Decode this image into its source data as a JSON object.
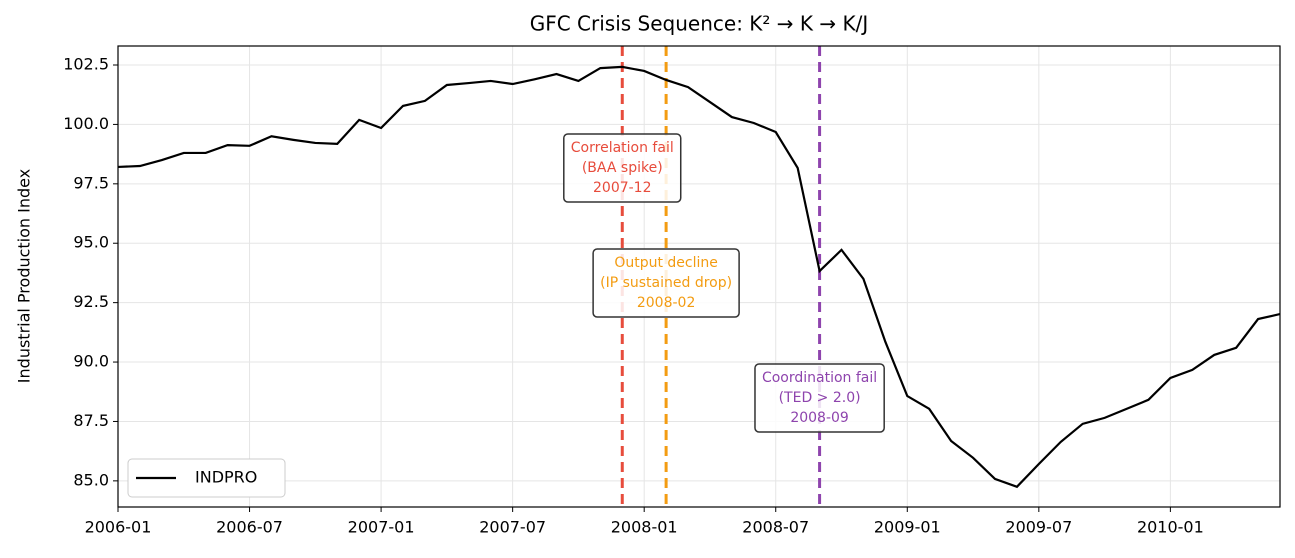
{
  "chart_data": {
    "type": "line",
    "title": "GFC Crisis Sequence: K² → K → K/J",
    "y_label": "Industrial Production Index",
    "x": [
      "2006-01",
      "2006-02",
      "2006-03",
      "2006-04",
      "2006-05",
      "2006-06",
      "2006-07",
      "2006-08",
      "2006-09",
      "2006-10",
      "2006-11",
      "2006-12",
      "2007-01",
      "2007-02",
      "2007-03",
      "2007-04",
      "2007-05",
      "2007-06",
      "2007-07",
      "2007-08",
      "2007-09",
      "2007-10",
      "2007-11",
      "2007-12",
      "2008-01",
      "2008-02",
      "2008-03",
      "2008-04",
      "2008-05",
      "2008-06",
      "2008-07",
      "2008-08",
      "2008-09",
      "2008-10",
      "2008-11",
      "2008-12",
      "2009-01",
      "2009-02",
      "2009-03",
      "2009-04",
      "2009-05",
      "2009-06",
      "2009-07",
      "2009-08",
      "2009-09",
      "2009-10",
      "2009-11",
      "2009-12",
      "2010-01",
      "2010-02",
      "2010-03",
      "2010-04",
      "2010-05",
      "2010-06"
    ],
    "series": [
      {
        "name": "INDPRO",
        "color": "#000000",
        "values": [
          98.21,
          98.25,
          98.5,
          98.8,
          98.8,
          99.13,
          99.1,
          99.5,
          99.35,
          99.22,
          99.18,
          100.19,
          99.85,
          100.78,
          100.99,
          101.66,
          101.74,
          101.83,
          101.7,
          101.9,
          102.12,
          101.83,
          102.37,
          102.42,
          102.25,
          101.87,
          101.57,
          100.94,
          100.31,
          100.06,
          99.68,
          98.17,
          93.83,
          94.72,
          93.5,
          90.85,
          88.57,
          88.03,
          86.68,
          85.97,
          85.08,
          84.75,
          85.71,
          86.64,
          87.4,
          87.65,
          88.03,
          88.41,
          89.33,
          89.67,
          90.3,
          90.6,
          91.81,
          92.02
        ]
      }
    ],
    "xlim": [
      "2006-01",
      "2010-06"
    ],
    "xticks": [
      "2006-01",
      "2006-07",
      "2007-01",
      "2007-07",
      "2008-01",
      "2008-07",
      "2009-01",
      "2009-07",
      "2010-01"
    ],
    "ylim": [
      83.9,
      103.3
    ],
    "yticks": [
      {
        "value": 85,
        "label": "85.0"
      },
      87.5,
      {
        "value": 90,
        "label": "90.0"
      },
      92.5,
      {
        "value": 95,
        "label": "95.0"
      },
      97.5,
      {
        "value": 100,
        "label": "100.0"
      },
      102.5
    ],
    "grid": true,
    "legend": "lower left",
    "events": [
      {
        "x": "2007-12",
        "color": "#e74c3c",
        "lines": [
          "Correlation fail",
          "(BAA spike)"
        ]
      },
      {
        "x": "2008-02",
        "color": "#f39c12",
        "lines": [
          "Output decline",
          "(IP sustained drop)"
        ]
      },
      {
        "x": "2008-09",
        "color": "#8e44ad",
        "lines": [
          "Coordination fail",
          "(TED > 2.0)"
        ]
      }
    ]
  }
}
